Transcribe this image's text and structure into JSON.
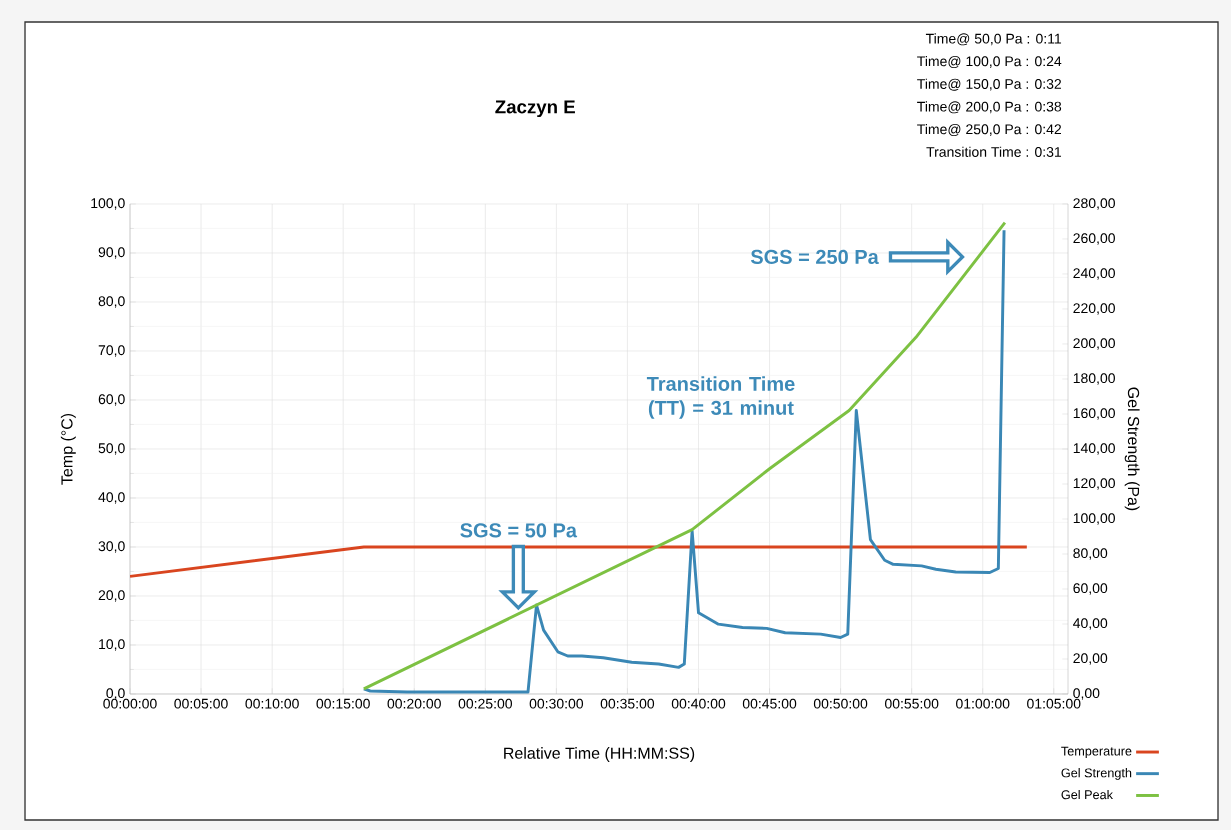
{
  "chart_data": {
    "type": "line",
    "title": "Zaczyn E",
    "xlabel": "Relative Time (HH:MM:SS)",
    "ylabel": "Temp (°C)",
    "y2label": "Gel Strength (Pa)",
    "xlim": [
      0,
      1.1
    ],
    "ylim": [
      0,
      100
    ],
    "y2lim": [
      0,
      280
    ],
    "xticks": [
      {
        "value": 0,
        "label": "00:00:00"
      },
      {
        "value": 0.0833,
        "label": "00:05:00"
      },
      {
        "value": 0.1667,
        "label": "00:10:00"
      },
      {
        "value": 0.25,
        "label": "00:15:00"
      },
      {
        "value": 0.3333,
        "label": "00:20:00"
      },
      {
        "value": 0.4167,
        "label": "00:25:00"
      },
      {
        "value": 0.5,
        "label": "00:30:00"
      },
      {
        "value": 0.5833,
        "label": "00:35:00"
      },
      {
        "value": 0.6667,
        "label": "00:40:00"
      },
      {
        "value": 0.75,
        "label": "00:45:00"
      },
      {
        "value": 0.8333,
        "label": "00:50:00"
      },
      {
        "value": 0.9167,
        "label": "00:55:00"
      },
      {
        "value": 1.0,
        "label": "01:00:00"
      },
      {
        "value": 1.0833,
        "label": "01:05:00"
      }
    ],
    "yticks": [
      {
        "value": 0,
        "label": "0,0"
      },
      {
        "value": 10,
        "label": "10,0"
      },
      {
        "value": 20,
        "label": "20,0"
      },
      {
        "value": 30,
        "label": "30,0"
      },
      {
        "value": 40,
        "label": "40,0"
      },
      {
        "value": 50,
        "label": "50,0"
      },
      {
        "value": 60,
        "label": "60,0"
      },
      {
        "value": 70,
        "label": "70,0"
      },
      {
        "value": 80,
        "label": "80,0"
      },
      {
        "value": 90,
        "label": "90,0"
      },
      {
        "value": 100,
        "label": "100,0"
      }
    ],
    "y2ticks": [
      {
        "value": 0,
        "label": "0,00"
      },
      {
        "value": 20,
        "label": "20,00"
      },
      {
        "value": 40,
        "label": "40,00"
      },
      {
        "value": 60,
        "label": "60,00"
      },
      {
        "value": 80,
        "label": "80,00"
      },
      {
        "value": 100,
        "label": "100,00"
      },
      {
        "value": 120,
        "label": "120,00"
      },
      {
        "value": 140,
        "label": "140,00"
      },
      {
        "value": 160,
        "label": "160,00"
      },
      {
        "value": 180,
        "label": "180,00"
      },
      {
        "value": 200,
        "label": "200,00"
      },
      {
        "value": 220,
        "label": "220,00"
      },
      {
        "value": 240,
        "label": "240,00"
      },
      {
        "value": 260,
        "label": "260,00"
      },
      {
        "value": 280,
        "label": "280,00"
      }
    ],
    "grid": true,
    "legend": "bottom right",
    "series": [
      {
        "name": "Temperature",
        "color": "#d9451f",
        "x": [
          0,
          0.2742,
          1.0517
        ],
        "values": [
          24.0,
          30.0,
          30.0
        ]
      },
      {
        "name": "Gel Strength",
        "color": "#3a87b5",
        "axis": "y2",
        "x": [
          0.2742,
          0.2817,
          0.325,
          0.4667,
          0.4767,
          0.485,
          0.5017,
          0.5133,
          0.53,
          0.555,
          0.5883,
          0.62,
          0.6433,
          0.65,
          0.6592,
          0.6667,
          0.69,
          0.7183,
          0.7467,
          0.7683,
          0.81,
          0.8333,
          0.8417,
          0.8517,
          0.8683,
          0.885,
          0.895,
          0.9283,
          0.945,
          0.9683,
          1.0083,
          1.0183,
          1.025
        ],
        "values": [
          2.9,
          1.7,
          1.1,
          1.1,
          50.8,
          36.5,
          24.1,
          21.7,
          21.7,
          20.7,
          18.1,
          17.1,
          15.2,
          17.1,
          93.1,
          46.4,
          39.9,
          38.0,
          37.5,
          35.0,
          34.2,
          32.3,
          34.2,
          162.0,
          88.2,
          76.4,
          74.1,
          73.2,
          71.3,
          69.7,
          69.4,
          71.7,
          265.0
        ]
      },
      {
        "name": "Gel Peak",
        "color": "#7dc142",
        "axis": "y2",
        "x": [
          0.2742,
          0.6592,
          0.75,
          0.8433,
          0.9217,
          1.026
        ],
        "values": [
          2.9,
          93.9,
          128.7,
          162.0,
          203.8,
          269.3
        ]
      }
    ],
    "annotations": [
      "Time@ 50,0 Pa : 0:11",
      "Time@ 100,0 Pa : 0:24",
      "Time@ 150,0 Pa : 0:32",
      "Time@ 200,0 Pa : 0:38",
      "Time@ 250,0 Pa : 0:42",
      "Transition Time : 0:31",
      "SGS = 50 Pa",
      "Transition Time (TT) = 31 minut",
      "SGS = 250 Pa"
    ]
  }
}
